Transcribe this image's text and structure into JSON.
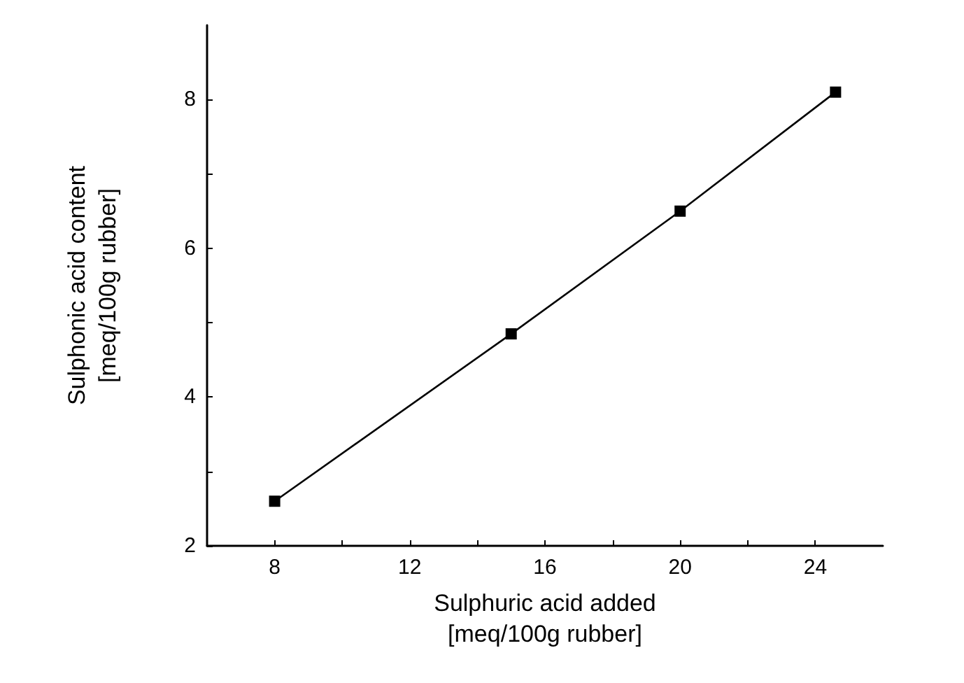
{
  "chart_data": {
    "type": "line",
    "xlabel": "Sulphuric acid added\n[meq/100g rubber]",
    "ylabel": "Sulphonic acid content\n[meq/100g rubber]",
    "x": [
      8,
      15,
      20,
      24.6
    ],
    "series": [
      {
        "color": "#000000",
        "values": [
          2.6,
          4.85,
          6.5,
          8.1
        ]
      }
    ],
    "xlim": [
      6,
      26
    ],
    "xticks": [
      8,
      {
        "value": 10,
        "label": null
      },
      12,
      {
        "value": 14,
        "label": null
      },
      16,
      {
        "value": 18,
        "label": null
      },
      20,
      {
        "value": 22,
        "label": null
      },
      24
    ],
    "ylim": [
      2,
      9
    ],
    "yticks": [
      2,
      {
        "value": 3,
        "label": null
      },
      4,
      {
        "value": 5,
        "label": null
      },
      6,
      {
        "value": 7,
        "label": null
      },
      8
    ],
    "marker": "square",
    "line_style": "solid"
  }
}
